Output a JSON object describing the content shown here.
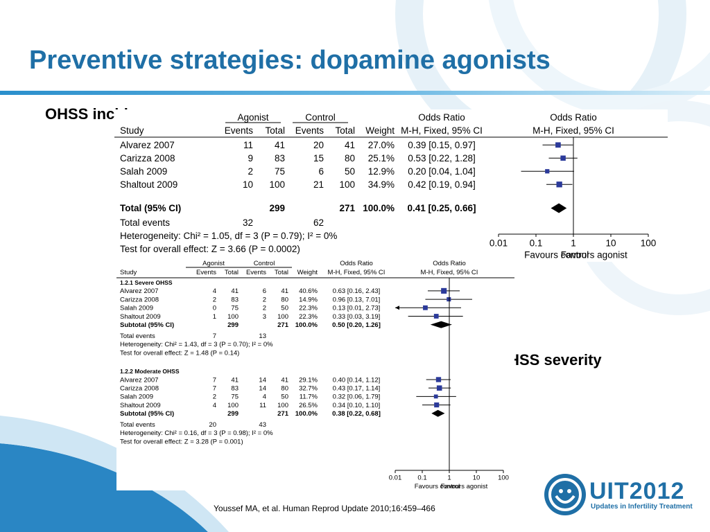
{
  "slide": {
    "title": "Preventive strategies: dopamine agonists",
    "label_incidence": "OHSS incidence",
    "label_severity": "OHSS severity",
    "citation": "Youssef MA, et al. Human Reprod Update 2010;16:459–466",
    "logo_text": "UIT2012",
    "logo_subtitle": "Updates in Infertility Treatment",
    "accent_color": "#1f6fa6"
  },
  "chart_data": [
    {
      "type": "forest",
      "headers": {
        "group_agonist": "Agonist",
        "group_control": "Control",
        "group_or_text": "Odds Ratio",
        "group_or_plot": "Odds Ratio",
        "study": "Study",
        "events1": "Events",
        "total1": "Total",
        "events2": "Events",
        "total2": "Total",
        "weight": "Weight",
        "method_text": "M-H, Fixed, 95% CI",
        "method_plot": "M-H, Fixed, 95% CI"
      },
      "studies": [
        {
          "study": "Alvarez 2007",
          "e1": "11",
          "t1": "41",
          "e2": "20",
          "t2": "41",
          "weight": "27.0%",
          "ci_text": "0.39 [0.15, 0.97]",
          "or": 0.39,
          "lo": 0.15,
          "hi": 0.97,
          "w": 27.0
        },
        {
          "study": "Carizza 2008",
          "e1": "9",
          "t1": "83",
          "e2": "15",
          "t2": "80",
          "weight": "25.1%",
          "ci_text": "0.53 [0.22, 1.28]",
          "or": 0.53,
          "lo": 0.22,
          "hi": 1.28,
          "w": 25.1
        },
        {
          "study": "Salah 2009",
          "e1": "2",
          "t1": "75",
          "e2": "6",
          "t2": "50",
          "weight": "12.9%",
          "ci_text": "0.20 [0.04, 1.04]",
          "or": 0.2,
          "lo": 0.04,
          "hi": 1.04,
          "w": 12.9
        },
        {
          "study": "Shaltout 2009",
          "e1": "10",
          "t1": "100",
          "e2": "21",
          "t2": "100",
          "weight": "34.9%",
          "ci_text": "0.42 [0.19, 0.94]",
          "or": 0.42,
          "lo": 0.19,
          "hi": 0.94,
          "w": 34.9
        }
      ],
      "total": {
        "label": "Total (95% CI)",
        "t1": "299",
        "t2": "271",
        "weight": "100.0%",
        "ci_text": "0.41 [0.25, 0.66]",
        "or": 0.41,
        "lo": 0.25,
        "hi": 0.66
      },
      "total_events": {
        "label": "Total events",
        "e1": "32",
        "e2": "62"
      },
      "heterogeneity": "Heterogeneity: Chi² = 1.05, df = 3 (P = 0.79); I² = 0%",
      "overall_effect": "Test for overall effect: Z = 3.66 (P = 0.0002)",
      "axis": {
        "scale": "log",
        "ticks": [
          "0.01",
          "0.1",
          "1",
          "10",
          "100"
        ],
        "tick_values": [
          0.01,
          0.1,
          1,
          10,
          100
        ],
        "favours_left": "Favours control",
        "favours_right": "Favours agonist"
      }
    },
    {
      "type": "forest",
      "headers": {
        "group_agonist": "Agonist",
        "group_control": "Control",
        "group_or_text": "Odds Ratio",
        "group_or_plot": "Odds Ratio",
        "study": "Study",
        "events1": "Events",
        "total1": "Total",
        "events2": "Events",
        "total2": "Total",
        "weight": "Weight",
        "method_text": "M-H, Fixed, 95% CI",
        "method_plot": "M-H, Fixed, 95% CI"
      },
      "subgroups": [
        {
          "title": "1.2.1 Severe OHSS",
          "studies": [
            {
              "study": "Alvarez 2007",
              "e1": "4",
              "t1": "41",
              "e2": "6",
              "t2": "41",
              "weight": "40.6%",
              "ci_text": "0.63 [0.16, 2.43]",
              "or": 0.63,
              "lo": 0.16,
              "hi": 2.43,
              "w": 40.6
            },
            {
              "study": "Carizza 2008",
              "e1": "2",
              "t1": "83",
              "e2": "2",
              "t2": "80",
              "weight": "14.9%",
              "ci_text": "0.96 [0.13, 7.01]",
              "or": 0.96,
              "lo": 0.13,
              "hi": 7.01,
              "w": 14.9
            },
            {
              "study": "Salah 2009",
              "e1": "0",
              "t1": "75",
              "e2": "2",
              "t2": "50",
              "weight": "22.3%",
              "ci_text": "0.13 [0.01, 2.73]",
              "or": 0.13,
              "lo": 0.01,
              "hi": 2.73,
              "w": 22.3
            },
            {
              "study": "Shaltout 2009",
              "e1": "1",
              "t1": "100",
              "e2": "3",
              "t2": "100",
              "weight": "22.3%",
              "ci_text": "0.33 [0.03, 3.19]",
              "or": 0.33,
              "lo": 0.03,
              "hi": 3.19,
              "w": 22.3
            }
          ],
          "subtotal": {
            "label": "Subtotal (95% CI)",
            "t1": "299",
            "t2": "271",
            "weight": "100.0%",
            "ci_text": "0.50 [0.20, 1.26]",
            "or": 0.5,
            "lo": 0.2,
            "hi": 1.26
          },
          "total_events": {
            "label": "Total events",
            "e1": "7",
            "e2": "13"
          },
          "heterogeneity": "Heterogeneity: Chi² = 1.43, df = 3 (P = 0.70); I² = 0%",
          "overall_effect": "Test for overall effect: Z = 1.48 (P = 0.14)"
        },
        {
          "title": "1.2.2 Moderate OHSS",
          "studies": [
            {
              "study": "Alvarez 2007",
              "e1": "7",
              "t1": "41",
              "e2": "14",
              "t2": "41",
              "weight": "29.1%",
              "ci_text": "0.40 [0.14, 1.12]",
              "or": 0.4,
              "lo": 0.14,
              "hi": 1.12,
              "w": 29.1
            },
            {
              "study": "Carizza 2008",
              "e1": "7",
              "t1": "83",
              "e2": "14",
              "t2": "80",
              "weight": "32.7%",
              "ci_text": "0.43 [0.17, 1.14]",
              "or": 0.43,
              "lo": 0.17,
              "hi": 1.14,
              "w": 32.7
            },
            {
              "study": "Salah 2009",
              "e1": "2",
              "t1": "75",
              "e2": "4",
              "t2": "50",
              "weight": "11.7%",
              "ci_text": "0.32 [0.06, 1.79]",
              "or": 0.32,
              "lo": 0.06,
              "hi": 1.79,
              "w": 11.7
            },
            {
              "study": "Shaltout 2009",
              "e1": "4",
              "t1": "100",
              "e2": "11",
              "t2": "100",
              "weight": "26.5%",
              "ci_text": "0.34 [0.10, 1.10]",
              "or": 0.34,
              "lo": 0.1,
              "hi": 1.1,
              "w": 26.5
            }
          ],
          "subtotal": {
            "label": "Subtotal (95% CI)",
            "t1": "299",
            "t2": "271",
            "weight": "100.0%",
            "ci_text": "0.38 [0.22, 0.68]",
            "or": 0.38,
            "lo": 0.22,
            "hi": 0.68
          },
          "total_events": {
            "label": "Total events",
            "e1": "20",
            "e2": "43"
          },
          "heterogeneity": "Heterogeneity: Chi² = 0.16, df = 3 (P = 0.98); I² = 0%",
          "overall_effect": "Test for overall effect: Z = 3.28 (P = 0.001)"
        }
      ],
      "axis": {
        "scale": "log",
        "ticks": [
          "0.01",
          "0.1",
          "1",
          "10",
          "100"
        ],
        "tick_values": [
          0.01,
          0.1,
          1,
          10,
          100
        ],
        "favours_left": "Favours control",
        "favours_right": "Favours agonist"
      }
    }
  ]
}
